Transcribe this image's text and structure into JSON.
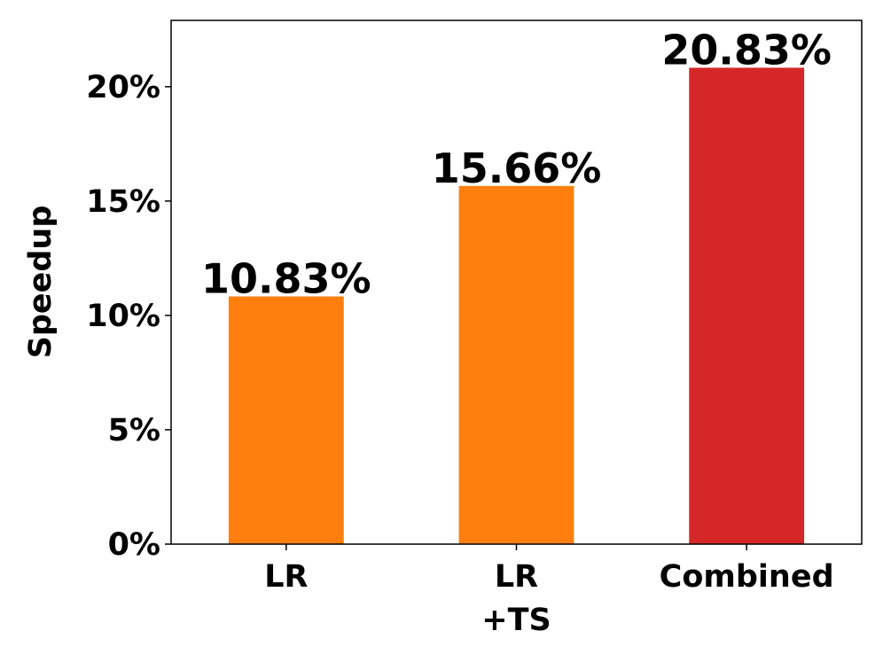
{
  "chart_data": {
    "type": "bar",
    "categories": [
      [
        "LR"
      ],
      [
        "LR",
        "+TS"
      ],
      [
        "Combined"
      ]
    ],
    "values": [
      10.83,
      15.66,
      20.83
    ],
    "data_labels": [
      "10.83%",
      "15.66%",
      "20.83%"
    ],
    "colors": [
      "#ff7f0e",
      "#ff7f0e",
      "#d62728"
    ],
    "title": "",
    "xlabel": "",
    "ylabel": "Speedup",
    "ylim": [
      0,
      22.9
    ],
    "yticks": [
      0,
      5,
      10,
      15,
      20
    ],
    "ytick_labels": [
      "0%",
      "5%",
      "10%",
      "15%",
      "20%"
    ],
    "grid": false,
    "legend": false
  }
}
